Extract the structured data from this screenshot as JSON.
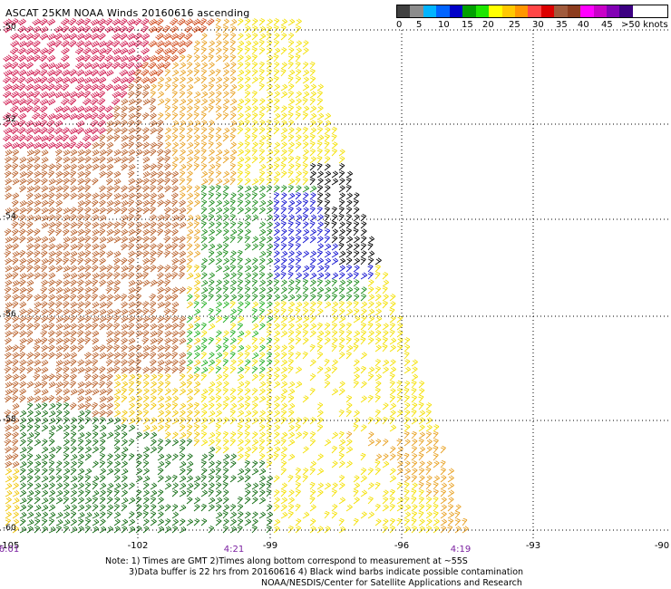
{
  "title": "ASCAT 25KM NOAA Winds 20160616 ascending",
  "legend": {
    "colors": [
      "#404040",
      "#8c8c8c",
      "#00b4ff",
      "#0064ff",
      "#0000c8",
      "#00a000",
      "#1ee600",
      "#ffff00",
      "#ffc800",
      "#ff9600",
      "#ff4646",
      "#dc0000",
      "#a05a3c",
      "#8c3c1e",
      "#ff00ff",
      "#c800c8",
      "#8200b4",
      "#3c0082"
    ],
    "labels": [
      "0",
      "5",
      "10",
      "15",
      "20",
      "25",
      "30",
      "35",
      "40",
      "45",
      ">50 knots"
    ]
  },
  "axes": {
    "x_labels": [
      "-105",
      "-102",
      "-99",
      "-96",
      "-93",
      "-90"
    ],
    "y_labels": [
      "-50",
      "-52",
      "-54",
      "-56",
      "-58",
      "-60"
    ]
  },
  "times": [
    "6:01",
    "4:21",
    "4:19"
  ],
  "note": {
    "line1": "Note: 1) Times are GMT 2)Times along bottom correspond to measurement at ~55S",
    "line2": "3)Data buffer is 22 hrs from 20160616 4) Black wind barbs indicate possible contamination",
    "line3": "NOAA/NESDIS/Center for Satellite Applications and Research"
  },
  "barb_colors": {
    "red": "#d01a50",
    "orange_red": "#d04a1a",
    "brown": "#b8602a",
    "orange": "#e8a020",
    "gold": "#f0c400",
    "yellow": "#f4e000",
    "green": "#1a8c1a",
    "dark_green": "#0f6a0f",
    "light_green": "#20b020",
    "blue": "#1010d0",
    "black": "#000000"
  }
}
